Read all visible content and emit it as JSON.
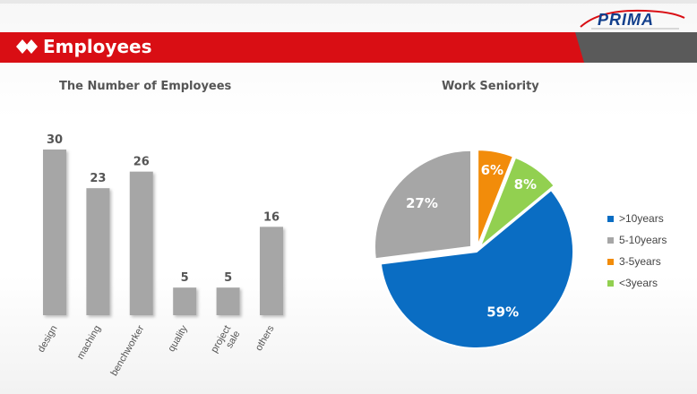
{
  "header": {
    "title": "Employees"
  },
  "logo": {
    "text": "PRIMA"
  },
  "colors": {
    "header_red": "#d90e14",
    "header_gray": "#5a5a5a",
    "bar": "#a6a6a6",
    "pie": [
      "#0a6dc3",
      "#a6a6a6",
      "#f28c0a",
      "#92d050"
    ]
  },
  "chart_data": [
    {
      "type": "bar",
      "title": "The Number of Employees",
      "categories": [
        "design",
        "maching",
        "benchworker",
        "quality",
        "project sale",
        "others"
      ],
      "category_lines": [
        [
          "design"
        ],
        [
          "maching"
        ],
        [
          "benchworker"
        ],
        [
          "quality"
        ],
        [
          "project",
          "sale"
        ],
        [
          "others"
        ]
      ],
      "values": [
        30,
        23,
        26,
        5,
        5,
        16
      ],
      "ylim": [
        0,
        30
      ],
      "grid": false,
      "legend": "none"
    },
    {
      "type": "pie",
      "title": "Work Seniority",
      "labels": [
        ">10years",
        "5-10years",
        "3-5years",
        "<3years"
      ],
      "values": [
        59,
        27,
        6,
        8
      ],
      "value_labels": [
        "59%",
        "27%",
        "6%",
        "8%"
      ],
      "legend": "right"
    }
  ]
}
